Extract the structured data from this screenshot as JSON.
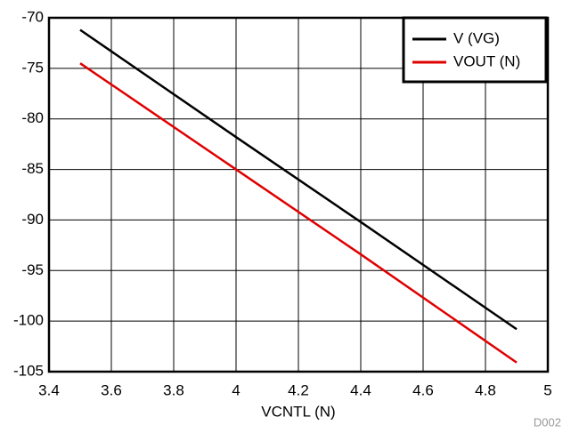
{
  "chart_data": {
    "type": "line",
    "x_label": "VCNTL (N)",
    "note": "D002",
    "x": [
      3.5,
      4.0,
      4.4,
      4.9
    ],
    "series": [
      {
        "name": "V (VG)",
        "color": "#000000",
        "values": [
          -71.2,
          -81.8,
          -90.2,
          -100.8
        ]
      },
      {
        "name": "VOUT (N)",
        "color": "#e00000",
        "values": [
          -74.5,
          -85.0,
          -93.4,
          -104.1
        ]
      }
    ],
    "xlim": [
      3.4,
      5
    ],
    "xticks": [
      3.4,
      3.6,
      3.8,
      4,
      4.2,
      4.4,
      4.6,
      4.8,
      5
    ],
    "ylim": [
      -105,
      -70
    ],
    "yticks": [
      -105,
      -100,
      -95,
      -90,
      -85,
      -80,
      -75,
      -70
    ],
    "grid": true,
    "legend": "upper right"
  }
}
